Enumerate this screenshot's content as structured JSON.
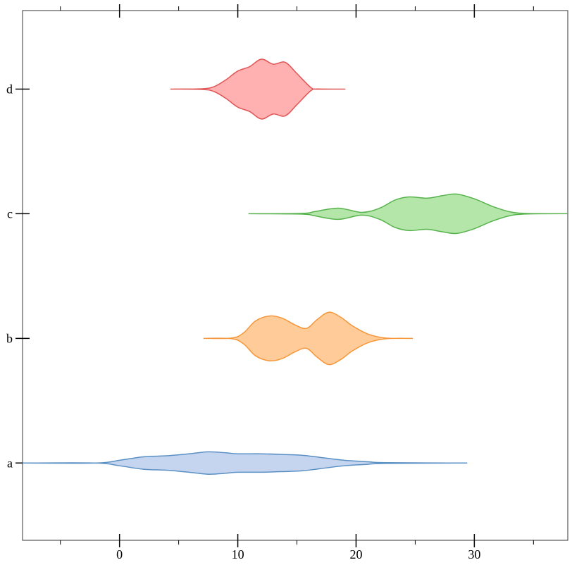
{
  "chart_data": {
    "type": "violin",
    "orientation": "horizontal",
    "categories": [
      "a",
      "b",
      "c",
      "d"
    ],
    "xlim": [
      -8.2,
      37.9
    ],
    "xticks": [
      0,
      10,
      20,
      30
    ],
    "xminorticks": [
      -5,
      5,
      15,
      25,
      35
    ],
    "ylim": [
      -0.62,
      3.63
    ],
    "violins": [
      {
        "color": "#5a90c4",
        "fill": "#c5d5ef",
        "x": [
          -8.2,
          -2,
          0,
          2,
          4,
          6,
          7.5,
          9,
          10,
          12,
          14,
          15.5,
          17,
          19,
          21,
          22.5,
          29.4
        ],
        "width": [
          0,
          0,
          0.022,
          0.05,
          0.058,
          0.075,
          0.09,
          0.082,
          0.074,
          0.074,
          0.068,
          0.062,
          0.045,
          0.022,
          0.01,
          0.003,
          0
        ]
      },
      {
        "color": "#f5963a",
        "fill": "#ffcc99",
        "x": [
          7.1,
          9.5,
          10.5,
          11.5,
          12.7,
          13.8,
          14.8,
          15.8,
          16.7,
          17.7,
          18.7,
          19.7,
          21,
          22.5,
          24.8
        ],
        "width": [
          0,
          0.003,
          0.045,
          0.14,
          0.18,
          0.16,
          0.11,
          0.08,
          0.15,
          0.21,
          0.17,
          0.1,
          0.035,
          0.003,
          0
        ]
      },
      {
        "color": "#58b34e",
        "fill": "#b3e6a8",
        "x": [
          10.9,
          15.5,
          16.5,
          18.5,
          20.5,
          22,
          23.3,
          24.5,
          26,
          27.3,
          28.5,
          30,
          31.5,
          33,
          34.5,
          37.9
        ],
        "width": [
          0,
          0.003,
          0.017,
          0.045,
          0.011,
          0.045,
          0.11,
          0.135,
          0.125,
          0.145,
          0.158,
          0.12,
          0.06,
          0.016,
          0.002,
          0
        ]
      },
      {
        "color": "#e05555",
        "fill": "#ffb0b0",
        "x": [
          4.3,
          7,
          8,
          9,
          10,
          11,
          12,
          13,
          14,
          15,
          16.2,
          16.8,
          19.1
        ],
        "width": [
          0,
          0.003,
          0.02,
          0.075,
          0.145,
          0.18,
          0.24,
          0.2,
          0.215,
          0.125,
          0.011,
          0.001,
          0
        ]
      }
    ]
  }
}
